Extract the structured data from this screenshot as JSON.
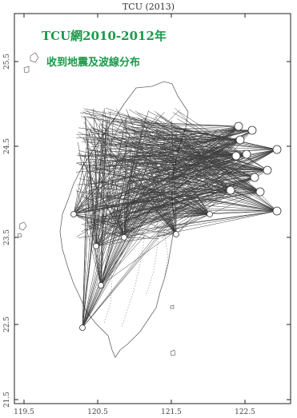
{
  "title": "TCU (2013)",
  "headline": {
    "line1": "TCU網2010-2012年",
    "line2": "收到地震及波線分布",
    "color": "#1a9a4a"
  },
  "axes": {
    "x_ticks": [
      "119.5",
      "120.5",
      "121.5",
      "122.5"
    ],
    "y_ticks": [
      "25.5",
      "24.5",
      "23.5",
      "22.5",
      "21.5"
    ]
  },
  "colors": {
    "ray": "#111111",
    "coast": "#666666",
    "frame": "#222222"
  }
}
